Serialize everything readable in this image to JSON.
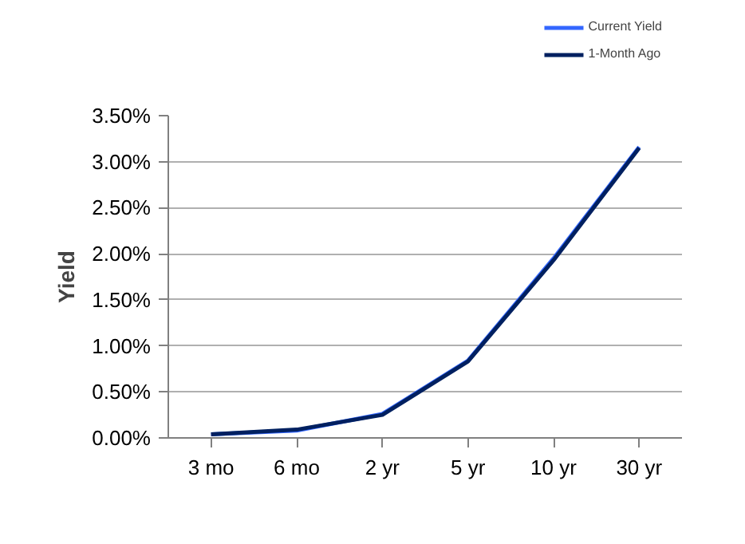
{
  "chart_data": {
    "type": "line",
    "ylabel": "Yield",
    "categories": [
      "3 mo",
      "6 mo",
      "2 yr",
      "5 yr",
      "10 yr",
      "30 yr"
    ],
    "series": [
      {
        "name": "Current Yield",
        "color": "#3366ff",
        "values": [
          0.04,
          0.08,
          0.26,
          0.84,
          1.95,
          3.16
        ]
      },
      {
        "name": "1-Month Ago",
        "color": "#002060",
        "values": [
          0.04,
          0.09,
          0.25,
          0.83,
          1.93,
          3.15
        ]
      }
    ],
    "ylim": [
      0,
      3.5
    ],
    "yticks": [
      {
        "value": 0,
        "label": "0.00%"
      },
      {
        "value": 0.5,
        "label": "0.50%"
      },
      {
        "value": 1,
        "label": "1.00%"
      },
      {
        "value": 1.5,
        "label": "1.50%"
      },
      {
        "value": 2,
        "label": "2.00%"
      },
      {
        "value": 2.5,
        "label": "2.50%"
      },
      {
        "value": 3,
        "label": "3.00%"
      },
      {
        "value": 3.5,
        "label": "3.50%"
      }
    ],
    "grid": "y",
    "legend": "top right",
    "marker": "none",
    "line_style": "solid"
  }
}
